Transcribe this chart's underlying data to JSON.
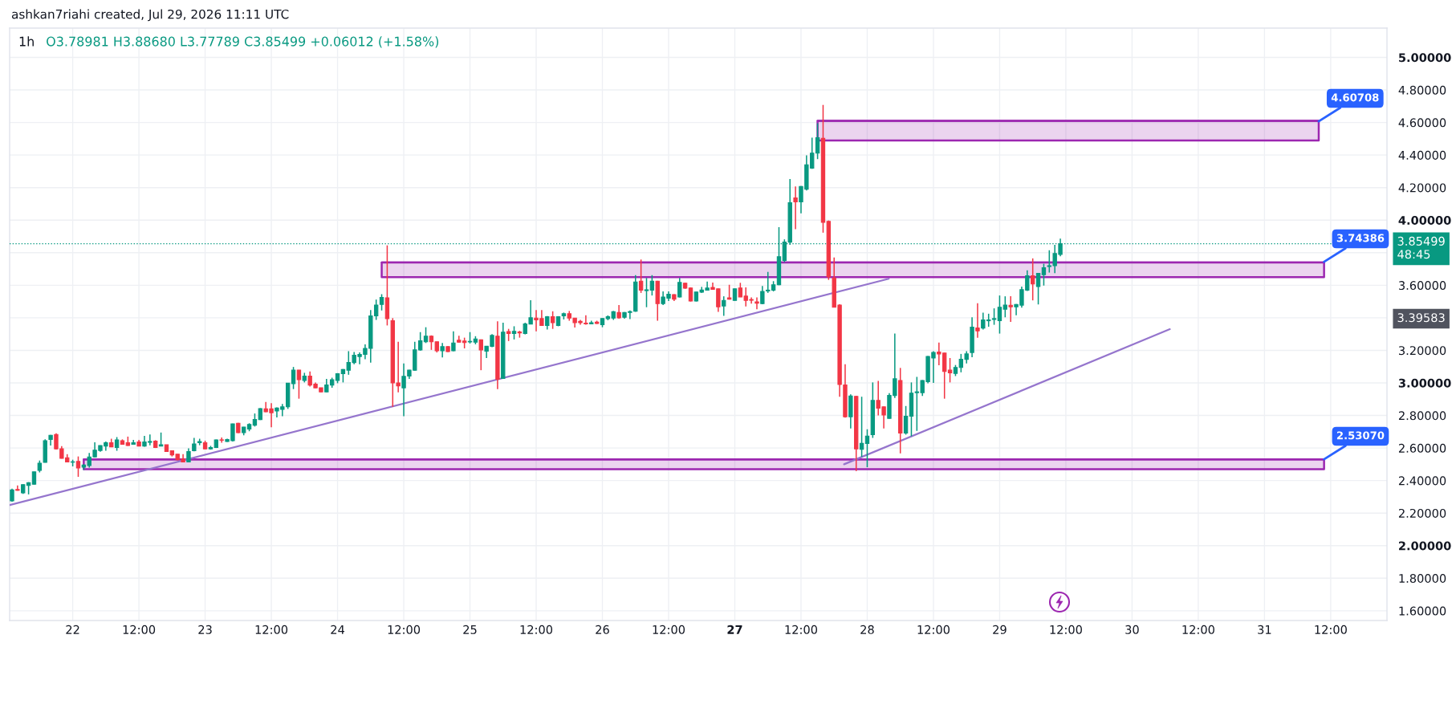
{
  "chart_data": {
    "type": "candlestick",
    "title": "1h",
    "subtitle": "O3.78981 H3.88680 L3.77789 C3.85499 +0.06012 (+1.58%)",
    "annotations": [
      "ashkan7riahi created, Jul 29, 2026 11:11 UTC",
      "3.39583",
      {
        "text": "4.60708",
        "x": "2026-07-31T09:50",
        "y": 4.60708
      },
      {
        "text": "3.74386",
        "x": "2026-07-31T10:48",
        "y": 3.74386
      },
      {
        "text": "2.53070",
        "x": "2026-07-31T10:48",
        "y": 2.5307
      }
    ],
    "colors": [
      "#089981",
      "#f23645",
      "#089981",
      "#089981",
      "#089981",
      "#089981",
      "#089981",
      "#089981",
      "#f23645",
      "#f23645",
      "#f23645",
      "#089981",
      "#f23645",
      "#089981",
      "#089981",
      "#089981",
      "#089981",
      "#089981",
      "#f23645",
      "#089981",
      "#f23645",
      "#f23645",
      "#089981",
      "#f23645",
      "#089981",
      "#089981",
      "#f23645",
      "#089981",
      "#f23645",
      "#f23645",
      "#f23645",
      "#f23645",
      "#089981",
      "#089981",
      "#089981",
      "#f23645",
      "#089981",
      "#089981",
      "#f23645",
      "#089981",
      "#089981",
      "#f23645",
      "#089981",
      "#089981",
      "#089981",
      "#089981",
      "#f23645",
      "#f23645",
      "#089981",
      "#089981",
      "#089981",
      "#089981",
      "#f23645",
      "#089981",
      "#f23645",
      "#f23645",
      "#f23645",
      "#089981",
      "#089981",
      "#089981",
      "#089981",
      "#089981",
      "#089981",
      "#089981",
      "#089981",
      "#089981",
      "#089981",
      "#089981",
      "#f23645",
      "#f23645",
      "#f23645",
      "#089981",
      "#089981",
      "#089981",
      "#089981",
      "#089981",
      "#f23645",
      "#f23645",
      "#089981",
      "#f23645",
      "#089981",
      "#f23645",
      "#f23645",
      "#089981",
      "#089981",
      "#f23645",
      "#089981",
      "#089981",
      "#f23645",
      "#089981",
      "#f23645",
      "#089981",
      "#f23645",
      "#089981",
      "#089981",
      "#f23645",
      "#f23645",
      "#089981",
      "#f23645",
      "#089981",
      "#089981",
      "#f23645",
      "#f23645",
      "#f23645",
      "#f23645",
      "#089981",
      "#f23645",
      "#089981",
      "#089981",
      "#089981",
      "#f23645",
      "#089981",
      "#089981",
      "#089981",
      "#f23645",
      "#089981",
      "#089981",
      "#f23645",
      "#089981",
      "#089981",
      "#f23645",
      "#089981",
      "#f23645",
      "#f23645",
      "#089981",
      "#089981",
      "#089981",
      "#f23645",
      "#f23645",
      "#089981",
      "#f23645",
      "#089981",
      "#f23645",
      "#f23645",
      "#f23645",
      "#f23645",
      "#089981",
      "#089981",
      "#089981",
      "#089981",
      "#089981",
      "#089981",
      "#f23645",
      "#089981",
      "#089981",
      "#089981",
      "#089981",
      "#f23645",
      "#f23645",
      "#f23645",
      "#f23645",
      "#f23645",
      "#089981",
      "#f23645",
      "#089981",
      "#089981",
      "#089981",
      "#f23645",
      "#f23645",
      "#089981",
      "#089981",
      "#f23645",
      "#089981",
      "#089981",
      "#089981",
      "#089981",
      "#089981",
      "#089981",
      "#f23645",
      "#f23645",
      "#f23645",
      "#089981",
      "#089981",
      "#089981",
      "#089981",
      "#f23645",
      "#089981",
      "#089981",
      "#089981",
      "#089981",
      "#089981",
      "#f23645",
      "#089981",
      "#089981",
      "#089981",
      "#f23645",
      "#089981",
      "#089981",
      "#089981",
      "#089981",
      "#089981"
    ],
    "x": [
      "2026-07-21T13:00",
      "2026-07-21T14:00",
      "2026-07-21T15:00",
      "2026-07-21T16:00",
      "2026-07-21T17:00",
      "2026-07-21T18:00",
      "2026-07-21T19:00",
      "2026-07-21T20:00",
      "2026-07-21T21:00",
      "2026-07-21T22:00",
      "2026-07-21T23:00",
      "2026-07-22T00:00",
      "2026-07-22T01:00",
      "2026-07-22T02:00",
      "2026-07-22T03:00",
      "2026-07-22T04:00",
      "2026-07-22T05:00",
      "2026-07-22T06:00",
      "2026-07-22T07:00",
      "2026-07-22T08:00",
      "2026-07-22T09:00",
      "2026-07-22T10:00",
      "2026-07-22T11:00",
      "2026-07-22T12:00",
      "2026-07-22T13:00",
      "2026-07-22T14:00",
      "2026-07-22T15:00",
      "2026-07-22T16:00",
      "2026-07-22T17:00",
      "2026-07-22T18:00",
      "2026-07-22T19:00",
      "2026-07-22T20:00",
      "2026-07-22T21:00",
      "2026-07-22T22:00",
      "2026-07-22T23:00",
      "2026-07-23T00:00",
      "2026-07-23T01:00",
      "2026-07-23T02:00",
      "2026-07-23T03:00",
      "2026-07-23T04:00",
      "2026-07-23T05:00",
      "2026-07-23T06:00",
      "2026-07-23T07:00",
      "2026-07-23T08:00",
      "2026-07-23T09:00",
      "2026-07-23T10:00",
      "2026-07-23T11:00",
      "2026-07-23T12:00",
      "2026-07-23T13:00",
      "2026-07-23T14:00",
      "2026-07-23T15:00",
      "2026-07-23T16:00",
      "2026-07-23T17:00",
      "2026-07-23T18:00",
      "2026-07-23T19:00",
      "2026-07-23T20:00",
      "2026-07-23T21:00",
      "2026-07-23T22:00",
      "2026-07-23T23:00",
      "2026-07-24T00:00",
      "2026-07-24T01:00",
      "2026-07-24T02:00",
      "2026-07-24T03:00",
      "2026-07-24T04:00",
      "2026-07-24T05:00",
      "2026-07-24T06:00",
      "2026-07-24T07:00",
      "2026-07-24T08:00",
      "2026-07-24T09:00",
      "2026-07-24T10:00",
      "2026-07-24T11:00",
      "2026-07-24T12:00",
      "2026-07-24T13:00",
      "2026-07-24T14:00",
      "2026-07-24T15:00",
      "2026-07-24T16:00",
      "2026-07-24T17:00",
      "2026-07-24T18:00",
      "2026-07-24T19:00",
      "2026-07-24T20:00",
      "2026-07-24T21:00",
      "2026-07-24T22:00",
      "2026-07-24T23:00",
      "2026-07-25T00:00",
      "2026-07-25T01:00",
      "2026-07-25T02:00",
      "2026-07-25T03:00",
      "2026-07-25T04:00",
      "2026-07-25T05:00",
      "2026-07-25T06:00",
      "2026-07-25T07:00",
      "2026-07-25T08:00",
      "2026-07-25T09:00",
      "2026-07-25T10:00",
      "2026-07-25T11:00",
      "2026-07-25T12:00",
      "2026-07-25T13:00",
      "2026-07-25T14:00",
      "2026-07-25T15:00",
      "2026-07-25T16:00",
      "2026-07-25T17:00",
      "2026-07-25T18:00",
      "2026-07-25T19:00",
      "2026-07-25T20:00",
      "2026-07-25T21:00",
      "2026-07-25T22:00",
      "2026-07-25T23:00",
      "2026-07-26T00:00",
      "2026-07-26T01:00",
      "2026-07-26T02:00",
      "2026-07-26T03:00",
      "2026-07-26T04:00",
      "2026-07-26T05:00",
      "2026-07-26T06:00",
      "2026-07-26T07:00",
      "2026-07-26T08:00",
      "2026-07-26T09:00",
      "2026-07-26T10:00",
      "2026-07-26T11:00",
      "2026-07-26T12:00",
      "2026-07-26T13:00",
      "2026-07-26T14:00",
      "2026-07-26T15:00",
      "2026-07-26T16:00",
      "2026-07-26T17:00",
      "2026-07-26T18:00",
      "2026-07-26T19:00",
      "2026-07-26T20:00",
      "2026-07-26T21:00",
      "2026-07-26T22:00",
      "2026-07-26T23:00",
      "2026-07-27T00:00",
      "2026-07-27T01:00",
      "2026-07-27T02:00",
      "2026-07-27T03:00",
      "2026-07-27T04:00",
      "2026-07-27T05:00",
      "2026-07-27T06:00",
      "2026-07-27T07:00",
      "2026-07-27T08:00",
      "2026-07-27T09:00",
      "2026-07-27T10:00",
      "2026-07-27T11:00",
      "2026-07-27T12:00",
      "2026-07-27T13:00",
      "2026-07-27T14:00",
      "2026-07-27T15:00",
      "2026-07-27T16:00",
      "2026-07-27T17:00",
      "2026-07-27T18:00",
      "2026-07-27T19:00",
      "2026-07-27T20:00",
      "2026-07-27T21:00",
      "2026-07-27T22:00",
      "2026-07-27T23:00",
      "2026-07-28T00:00",
      "2026-07-28T01:00",
      "2026-07-28T02:00",
      "2026-07-28T03:00",
      "2026-07-28T04:00",
      "2026-07-28T05:00",
      "2026-07-28T06:00",
      "2026-07-28T07:00",
      "2026-07-28T08:00",
      "2026-07-28T09:00",
      "2026-07-28T10:00",
      "2026-07-28T11:00",
      "2026-07-28T12:00",
      "2026-07-28T13:00",
      "2026-07-28T14:00",
      "2026-07-28T15:00",
      "2026-07-28T16:00",
      "2026-07-28T17:00",
      "2026-07-28T18:00",
      "2026-07-28T19:00",
      "2026-07-28T20:00",
      "2026-07-28T21:00",
      "2026-07-28T22:00",
      "2026-07-28T23:00",
      "2026-07-29T00:00",
      "2026-07-29T01:00",
      "2026-07-29T02:00",
      "2026-07-29T03:00",
      "2026-07-29T04:00",
      "2026-07-29T05:00",
      "2026-07-29T06:00",
      "2026-07-29T07:00",
      "2026-07-29T08:00",
      "2026-07-29T09:00",
      "2026-07-29T10:00",
      "2026-07-29T11:00"
    ],
    "ohlc": [
      [
        2.275,
        2.35,
        2.27,
        2.342
      ],
      [
        2.345,
        2.37,
        2.338,
        2.34
      ],
      [
        2.325,
        2.377,
        2.318,
        2.375
      ],
      [
        2.37,
        2.39,
        2.315,
        2.387
      ],
      [
        2.378,
        2.455,
        2.375,
        2.453
      ],
      [
        2.462,
        2.523,
        2.45,
        2.507
      ],
      [
        2.512,
        2.653,
        2.51,
        2.645
      ],
      [
        2.653,
        2.68,
        2.615,
        2.678
      ],
      [
        2.683,
        2.69,
        2.59,
        2.595
      ],
      [
        2.595,
        2.612,
        2.535,
        2.537
      ],
      [
        2.54,
        2.562,
        2.512,
        2.515
      ],
      [
        2.513,
        2.528,
        2.487,
        2.515
      ],
      [
        2.517,
        2.548,
        2.423,
        2.478
      ],
      [
        2.482,
        2.5,
        2.465,
        2.495
      ],
      [
        2.492,
        2.57,
        2.48,
        2.545
      ],
      [
        2.545,
        2.635,
        2.543,
        2.587
      ],
      [
        2.585,
        2.617,
        2.577,
        2.615
      ],
      [
        2.612,
        2.64,
        2.583,
        2.632
      ],
      [
        2.632,
        2.657,
        2.605,
        2.607
      ],
      [
        2.603,
        2.667,
        2.583,
        2.65
      ],
      [
        2.645,
        2.653,
        2.62,
        2.623
      ],
      [
        2.632,
        2.67,
        2.613,
        2.615
      ],
      [
        2.623,
        2.65,
        2.62,
        2.632
      ],
      [
        2.637,
        2.65,
        2.61,
        2.612
      ],
      [
        2.612,
        2.675,
        2.608,
        2.637
      ],
      [
        2.635,
        2.683,
        2.617,
        2.64
      ],
      [
        2.642,
        2.648,
        2.6,
        2.603
      ],
      [
        2.612,
        2.695,
        2.61,
        2.62
      ],
      [
        2.62,
        2.62,
        2.577,
        2.578
      ],
      [
        2.583,
        2.585,
        2.548,
        2.558
      ],
      [
        2.562,
        2.562,
        2.525,
        2.528
      ],
      [
        2.532,
        2.562,
        2.513,
        2.515
      ],
      [
        2.515,
        2.598,
        2.513,
        2.578
      ],
      [
        2.583,
        2.662,
        2.58,
        2.625
      ],
      [
        2.633,
        2.657,
        2.617,
        2.64
      ],
      [
        2.632,
        2.645,
        2.593,
        2.595
      ],
      [
        2.595,
        2.613,
        2.59,
        2.603
      ],
      [
        2.603,
        2.652,
        2.6,
        2.65
      ],
      [
        2.65,
        2.665,
        2.632,
        2.648
      ],
      [
        2.64,
        2.657,
        2.637,
        2.652
      ],
      [
        2.645,
        2.75,
        2.64,
        2.748
      ],
      [
        2.752,
        2.755,
        2.692,
        2.695
      ],
      [
        2.695,
        2.73,
        2.678,
        2.728
      ],
      [
        2.717,
        2.752,
        2.703,
        2.745
      ],
      [
        2.74,
        2.812,
        2.732,
        2.775
      ],
      [
        2.775,
        2.845,
        2.772,
        2.842
      ],
      [
        2.84,
        2.883,
        2.82,
        2.823
      ],
      [
        2.84,
        2.875,
        2.728,
        2.817
      ],
      [
        2.828,
        2.85,
        2.788,
        2.845
      ],
      [
        2.837,
        2.87,
        2.795,
        2.853
      ],
      [
        2.853,
        3.0,
        2.84,
        2.998
      ],
      [
        2.995,
        3.098,
        2.962,
        3.078
      ],
      [
        3.078,
        3.08,
        2.903,
        3.02
      ],
      [
        3.015,
        3.062,
        3.003,
        3.042
      ],
      [
        3.042,
        3.07,
        2.978,
        2.987
      ],
      [
        2.992,
        3.003,
        2.968,
        2.97
      ],
      [
        2.97,
        2.97,
        2.943,
        2.945
      ],
      [
        2.945,
        3.025,
        2.943,
        2.987
      ],
      [
        2.987,
        3.032,
        2.97,
        3.02
      ],
      [
        3.015,
        3.06,
        2.998,
        3.057
      ],
      [
        3.057,
        3.085,
        3.003,
        3.082
      ],
      [
        3.078,
        3.195,
        3.05,
        3.125
      ],
      [
        3.125,
        3.19,
        3.115,
        3.17
      ],
      [
        3.162,
        3.187,
        3.115,
        3.175
      ],
      [
        3.175,
        3.237,
        3.145,
        3.212
      ],
      [
        3.212,
        3.448,
        3.125,
        3.412
      ],
      [
        3.412,
        3.512,
        3.387,
        3.478
      ],
      [
        3.482,
        3.545,
        3.445,
        3.525
      ],
      [
        3.523,
        3.845,
        3.353,
        3.395
      ],
      [
        3.382,
        3.398,
        2.853,
        3.0
      ],
      [
        3.0,
        3.253,
        2.942,
        2.982
      ],
      [
        2.97,
        3.12,
        2.795,
        3.04
      ],
      [
        3.042,
        3.08,
        3.025,
        3.078
      ],
      [
        3.078,
        3.253,
        3.075,
        3.203
      ],
      [
        3.203,
        3.312,
        3.198,
        3.258
      ],
      [
        3.253,
        3.342,
        3.245,
        3.287
      ],
      [
        3.287,
        3.292,
        3.203,
        3.253
      ],
      [
        3.253,
        3.253,
        3.187,
        3.198
      ],
      [
        3.198,
        3.245,
        3.157,
        3.223
      ],
      [
        3.223,
        3.225,
        3.19,
        3.192
      ],
      [
        3.198,
        3.317,
        3.195,
        3.245
      ],
      [
        3.262,
        3.29,
        3.248,
        3.25
      ],
      [
        3.257,
        3.278,
        3.212,
        3.248
      ],
      [
        3.252,
        3.312,
        3.242,
        3.255
      ],
      [
        3.25,
        3.287,
        3.237,
        3.27
      ],
      [
        3.265,
        3.267,
        3.078,
        3.203
      ],
      [
        3.195,
        3.227,
        3.153,
        3.225
      ],
      [
        3.225,
        3.3,
        3.22,
        3.292
      ],
      [
        3.287,
        3.378,
        2.962,
        3.023
      ],
      [
        3.027,
        3.37,
        3.025,
        3.312
      ],
      [
        3.315,
        3.332,
        3.257,
        3.303
      ],
      [
        3.303,
        3.348,
        3.267,
        3.317
      ],
      [
        3.313,
        3.32,
        3.278,
        3.307
      ],
      [
        3.303,
        3.37,
        3.298,
        3.362
      ],
      [
        3.362,
        3.508,
        3.36,
        3.4
      ],
      [
        3.398,
        3.448,
        3.317,
        3.387
      ],
      [
        3.395,
        3.448,
        3.35,
        3.353
      ],
      [
        3.353,
        3.41,
        3.328,
        3.407
      ],
      [
        3.407,
        3.44,
        3.332,
        3.37
      ],
      [
        3.353,
        3.41,
        3.348,
        3.407
      ],
      [
        3.412,
        3.432,
        3.39,
        3.425
      ],
      [
        3.425,
        3.442,
        3.382,
        3.398
      ],
      [
        3.398,
        3.398,
        3.34,
        3.37
      ],
      [
        3.378,
        3.387,
        3.357,
        3.37
      ],
      [
        3.367,
        3.415,
        3.357,
        3.363
      ],
      [
        3.363,
        3.382,
        3.362,
        3.37
      ],
      [
        3.373,
        3.382,
        3.362,
        3.365
      ],
      [
        3.358,
        3.398,
        3.342,
        3.395
      ],
      [
        3.395,
        3.415,
        3.385,
        3.407
      ],
      [
        3.398,
        3.442,
        3.387,
        3.437
      ],
      [
        3.432,
        3.478,
        3.395,
        3.4
      ],
      [
        3.403,
        3.435,
        3.395,
        3.432
      ],
      [
        3.433,
        3.445,
        3.392,
        3.438
      ],
      [
        3.44,
        3.662,
        3.437,
        3.62
      ],
      [
        3.625,
        3.758,
        3.553,
        3.57
      ],
      [
        3.567,
        3.645,
        3.465,
        3.572
      ],
      [
        3.57,
        3.662,
        3.537,
        3.625
      ],
      [
        3.625,
        3.627,
        3.382,
        3.487
      ],
      [
        3.487,
        3.562,
        3.478,
        3.528
      ],
      [
        3.52,
        3.562,
        3.503,
        3.545
      ],
      [
        3.542,
        3.545,
        3.503,
        3.515
      ],
      [
        3.528,
        3.645,
        3.525,
        3.617
      ],
      [
        3.612,
        3.615,
        3.578,
        3.582
      ],
      [
        3.583,
        3.587,
        3.5,
        3.503
      ],
      [
        3.503,
        3.56,
        3.5,
        3.558
      ],
      [
        3.558,
        3.59,
        3.553,
        3.57
      ],
      [
        3.57,
        3.623,
        3.568,
        3.583
      ],
      [
        3.587,
        3.617,
        3.573,
        3.575
      ],
      [
        3.578,
        3.58,
        3.437,
        3.467
      ],
      [
        3.473,
        3.532,
        3.412,
        3.507
      ],
      [
        3.522,
        3.603,
        3.512,
        3.515
      ],
      [
        3.507,
        3.58,
        3.505,
        3.578
      ],
      [
        3.583,
        3.615,
        3.527,
        3.528
      ],
      [
        3.533,
        3.587,
        3.47,
        3.507
      ],
      [
        3.512,
        3.525,
        3.487,
        3.508
      ],
      [
        3.498,
        3.525,
        3.453,
        3.49
      ],
      [
        3.487,
        3.595,
        3.483,
        3.562
      ],
      [
        3.565,
        3.682,
        3.553,
        3.57
      ],
      [
        3.57,
        3.625,
        3.562,
        3.603
      ],
      [
        3.603,
        3.957,
        3.6,
        3.775
      ],
      [
        3.753,
        3.882,
        3.742,
        3.865
      ],
      [
        3.865,
        4.253,
        3.848,
        4.107
      ],
      [
        4.137,
        4.207,
        3.945,
        4.112
      ],
      [
        4.112,
        4.21,
        4.042,
        4.207
      ],
      [
        4.19,
        4.398,
        4.182,
        4.34
      ],
      [
        4.32,
        4.507,
        4.315,
        4.412
      ],
      [
        4.412,
        4.595,
        4.375,
        4.507
      ],
      [
        4.503,
        4.708,
        3.923,
        3.987
      ],
      [
        3.992,
        3.998,
        3.633,
        3.653
      ],
      [
        3.645,
        3.77,
        3.465,
        3.465
      ],
      [
        3.478,
        3.483,
        2.915,
        2.99
      ],
      [
        2.987,
        3.115,
        2.787,
        2.792
      ],
      [
        2.792,
        2.93,
        2.72,
        2.92
      ],
      [
        2.917,
        2.92,
        2.458,
        2.595
      ],
      [
        2.592,
        2.915,
        2.545,
        2.628
      ],
      [
        2.628,
        2.715,
        2.482,
        2.673
      ],
      [
        2.682,
        3.003,
        2.662,
        2.892
      ],
      [
        2.892,
        3.012,
        2.8,
        2.845
      ],
      [
        2.853,
        2.855,
        2.72,
        2.803
      ],
      [
        2.782,
        2.937,
        2.78,
        2.923
      ],
      [
        2.923,
        3.303,
        2.907,
        3.025
      ],
      [
        3.015,
        3.092,
        2.567,
        2.692
      ],
      [
        2.692,
        2.858,
        2.682,
        2.795
      ],
      [
        2.795,
        3.003,
        2.672,
        2.937
      ],
      [
        2.94,
        3.037,
        2.705,
        2.945
      ],
      [
        2.94,
        3.017,
        2.92,
        3.015
      ],
      [
        3.008,
        3.165,
        2.998,
        3.162
      ],
      [
        3.153,
        3.195,
        3.0,
        3.187
      ],
      [
        3.19,
        3.248,
        3.108,
        3.178
      ],
      [
        3.183,
        3.185,
        2.903,
        3.07
      ],
      [
        3.078,
        3.153,
        3.003,
        3.062
      ],
      [
        3.058,
        3.11,
        3.042,
        3.095
      ],
      [
        3.095,
        3.178,
        3.065,
        3.145
      ],
      [
        3.145,
        3.195,
        3.12,
        3.178
      ],
      [
        3.187,
        3.403,
        3.158,
        3.342
      ],
      [
        3.337,
        3.49,
        3.278,
        3.32
      ],
      [
        3.337,
        3.432,
        3.328,
        3.387
      ],
      [
        3.382,
        3.425,
        3.345,
        3.387
      ],
      [
        3.39,
        3.458,
        3.357,
        3.395
      ],
      [
        3.382,
        3.537,
        3.303,
        3.465
      ],
      [
        3.453,
        3.532,
        3.403,
        3.478
      ],
      [
        3.477,
        3.533,
        3.375,
        3.467
      ],
      [
        3.467,
        3.485,
        3.415,
        3.482
      ],
      [
        3.478,
        3.592,
        3.462,
        3.573
      ],
      [
        3.57,
        3.692,
        3.565,
        3.658
      ],
      [
        3.658,
        3.765,
        3.507,
        3.608
      ],
      [
        3.592,
        3.675,
        3.482,
        3.673
      ],
      [
        3.665,
        3.732,
        3.598,
        3.708
      ],
      [
        3.715,
        3.815,
        3.678,
        3.72
      ],
      [
        3.72,
        3.848,
        3.675,
        3.795
      ],
      [
        3.78981,
        3.8868,
        3.77789,
        3.85499
      ]
    ],
    "series": [
      {
        "type": "line",
        "color": "#9c27b0",
        "x": [
          "2026-07-22T02:00",
          "2026-07-31T10:48"
        ],
        "values": [
          2.53,
          2.53
        ],
        "lower": [
          2.47,
          2.47
        ],
        "upper": [
          2.53,
          2.53
        ]
      },
      {
        "type": "line",
        "color": "#9c27b0",
        "x": [
          "2026-07-24T08:00",
          "2026-07-31T10:48"
        ],
        "values": [
          3.74,
          3.74
        ],
        "lower": [
          3.65,
          3.65
        ],
        "upper": [
          3.74,
          3.74
        ]
      },
      {
        "type": "line",
        "color": "#9c27b0",
        "x": [
          "2026-07-27T15:00",
          "2026-07-31T09:50"
        ],
        "values": [
          4.61,
          4.61
        ],
        "lower": [
          4.49,
          4.49
        ],
        "upper": [
          4.61,
          4.61
        ]
      },
      {
        "type": "line",
        "color": "#9575cd",
        "x": [
          "2026-07-21T12:35",
          "2026-07-28T03:54"
        ],
        "values": [
          2.25,
          3.64
        ]
      },
      {
        "type": "line",
        "color": "#9575cd",
        "x": [
          "2026-07-27T19:48",
          "2026-07-30T06:51"
        ],
        "values": [
          2.5,
          3.33
        ]
      }
    ],
    "ref_lines": [
      {
        "axis": "y",
        "value": 3.85499,
        "label": "3.85499\n48:45",
        "color": "#089981",
        "line_style": "dotted"
      }
    ],
    "xlim": [
      "2026-07-21T12:34",
      "2026-07-31T22:12"
    ],
    "xticks": [
      {
        "value": "2026-07-22",
        "label": "22"
      },
      {
        "value": "2026-07-22T12:00",
        "label": "12:00"
      },
      {
        "value": "2026-07-23",
        "label": "23"
      },
      {
        "value": "2026-07-23T12:00",
        "label": "12:00"
      },
      {
        "value": "2026-07-24",
        "label": "24"
      },
      {
        "value": "2026-07-24T12:00",
        "label": "12:00"
      },
      {
        "value": "2026-07-25",
        "label": "25"
      },
      {
        "value": "2026-07-25T12:00",
        "label": "12:00"
      },
      {
        "value": "2026-07-26",
        "label": "26"
      },
      {
        "value": "2026-07-26T12:00",
        "label": "12:00"
      },
      {
        "value": "2026-07-27",
        "label": "27"
      },
      {
        "value": "2026-07-27T12:00",
        "label": "12:00"
      },
      {
        "value": "2026-07-28",
        "label": "28"
      },
      {
        "value": "2026-07-28T12:00",
        "label": "12:00"
      },
      {
        "value": "2026-07-29",
        "label": "29"
      },
      {
        "value": "2026-07-29T12:00",
        "label": "12:00"
      },
      {
        "value": "2026-07-30",
        "label": "30"
      },
      {
        "value": "2026-07-30T12:00",
        "label": "12:00"
      },
      {
        "value": "2026-07-31",
        "label": "31"
      },
      {
        "value": "2026-07-31T12:00",
        "label": "12:00"
      }
    ],
    "ylim": [
      1.54,
      5.18
    ],
    "yticks": [
      {
        "value": 1.6,
        "label": "1.60000"
      },
      {
        "value": 1.8,
        "label": "1.80000"
      },
      {
        "value": 2.0,
        "label": "2.00000"
      },
      {
        "value": 2.2,
        "label": "2.20000"
      },
      {
        "value": 2.4,
        "label": "2.40000"
      },
      {
        "value": 2.6,
        "label": "2.60000"
      },
      {
        "value": 2.8,
        "label": "2.80000"
      },
      {
        "value": 3.0,
        "label": "3.00000"
      },
      {
        "value": 3.2,
        "label": "3.20000"
      },
      {
        "value": 3.4,
        "label": null
      },
      {
        "value": 3.6,
        "label": "3.60000"
      },
      {
        "value": 3.8,
        "label": null
      },
      {
        "value": 4.0,
        "label": "4.00000"
      },
      {
        "value": 4.2,
        "label": "4.20000"
      },
      {
        "value": 4.4,
        "label": "4.40000"
      },
      {
        "value": 4.6,
        "label": "4.60000"
      },
      {
        "value": 4.8,
        "label": "4.80000"
      },
      {
        "value": 5.0,
        "label": "5.00000"
      }
    ],
    "grid": true
  }
}
